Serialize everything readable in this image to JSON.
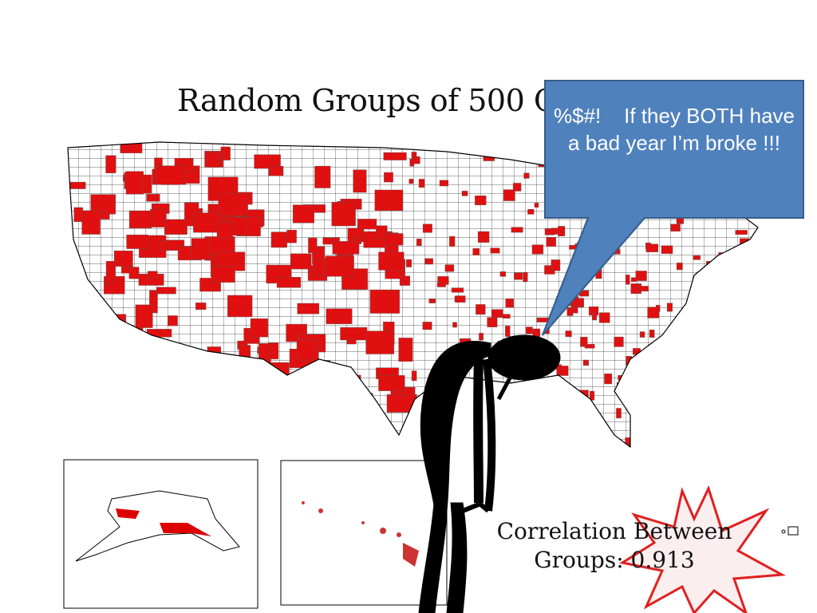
{
  "slide": {
    "title": "Random Groups of 500 Counties",
    "callout": "%$#!    If they BOTH have a bad year I’m broke !!!",
    "correlation": {
      "line1": "Correlation Between",
      "line2": "Groups: 0.913"
    }
  }
}
